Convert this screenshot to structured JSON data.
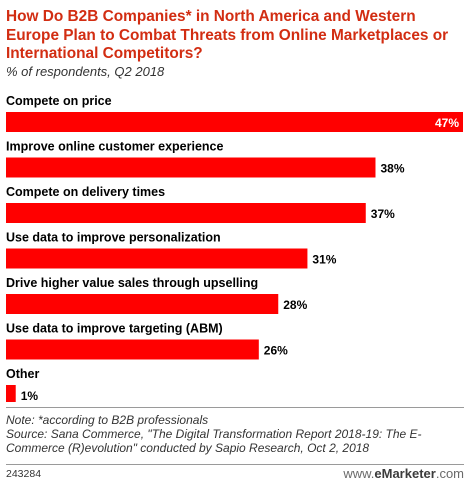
{
  "title": "How Do B2B Companies* in North America and Western Europe Plan to Combat Threats from Online Marketplaces or International Competitors?",
  "subtitle": "% of respondents, Q2 2018",
  "chart_data": {
    "type": "bar",
    "orientation": "horizontal",
    "categories": [
      "Compete on price",
      "Improve online customer experience",
      "Compete on delivery times",
      "Use data to improve personalization",
      "Drive higher value sales through upselling",
      "Use data to improve targeting (ABM)",
      "Other"
    ],
    "values": [
      47,
      38,
      37,
      31,
      28,
      26,
      1
    ],
    "value_labels": [
      "47%",
      "38%",
      "37%",
      "31%",
      "28%",
      "26%",
      "1%"
    ],
    "bar_color": "#ff0000",
    "grid": false,
    "legend": "none"
  },
  "note": "Note: *according to B2B professionals",
  "source": "Source: Sana Commerce, \"The Digital Transformation Report 2018-19: The E-Commerce (R)evolution\" conducted by Sapio Research, Oct 2, 2018",
  "footer": {
    "id": "243284",
    "brand_prefix": "www.",
    "brand_main": "eMarketer",
    "brand_suffix": ".com"
  }
}
